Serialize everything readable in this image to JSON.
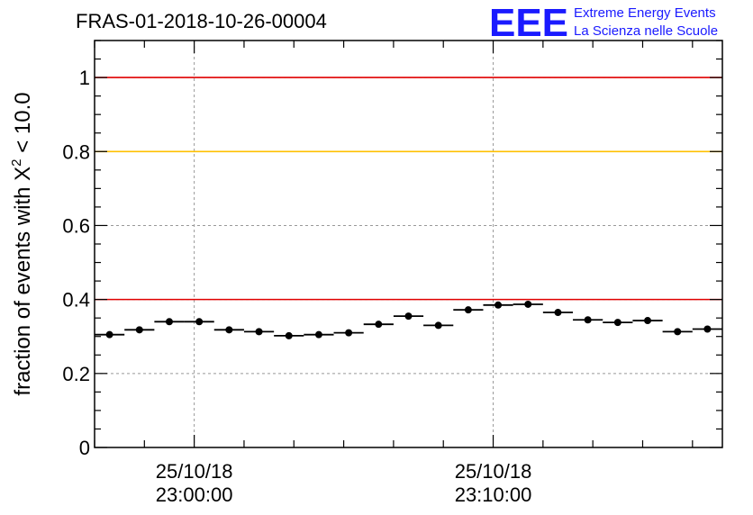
{
  "header": {
    "title": "FRAS-01-2018-10-26-00004",
    "logo_text": "EEE",
    "logo_line1": "Extreme Energy Events",
    "logo_line2": "La Scienza nelle Scuole"
  },
  "colors": {
    "logo": "#1a1aff",
    "ref_red": "#e00000",
    "ref_yellow": "#ffc000",
    "points": "#000000",
    "grid": "#999999"
  },
  "chart_data": {
    "type": "scatter",
    "title": "FRAS-01-2018-10-26-00004",
    "ylabel_main": "fraction of events with X",
    "ylabel_sup": "2",
    "ylabel_tail": " < 10.0",
    "xlabel": "",
    "ylim": [
      0,
      1.1
    ],
    "x_unit": "minutes after 25/10/18 22:56:40",
    "xlim": [
      0,
      21
    ],
    "x_ticks": [
      {
        "value": 3.333,
        "line1": "25/10/18",
        "line2": "23:00:00"
      },
      {
        "value": 13.333,
        "line1": "25/10/18",
        "line2": "23:10:00"
      }
    ],
    "y_ticks": [
      {
        "value": 0,
        "label": "0"
      },
      {
        "value": 0.2,
        "label": "0.2"
      },
      {
        "value": 0.4,
        "label": "0.4"
      },
      {
        "value": 0.6,
        "label": "0.6"
      },
      {
        "value": 0.8,
        "label": "0.8"
      },
      {
        "value": 1.0,
        "label": "1"
      }
    ],
    "reference_lines": [
      {
        "y": 1.0,
        "color": "#e00000"
      },
      {
        "y": 0.8,
        "color": "#ffc000"
      },
      {
        "y": 0.4,
        "color": "#e00000"
      }
    ],
    "grid": true,
    "bin_width": 1,
    "x": [
      0.5,
      1.5,
      2.5,
      3.5,
      4.5,
      5.5,
      6.5,
      7.5,
      8.5,
      9.5,
      10.5,
      11.5,
      12.5,
      13.5,
      14.5,
      15.5,
      16.5,
      17.5,
      18.5,
      19.5,
      20.5
    ],
    "values": [
      0.305,
      0.318,
      0.34,
      0.34,
      0.318,
      0.313,
      0.302,
      0.305,
      0.31,
      0.333,
      0.355,
      0.33,
      0.372,
      0.385,
      0.387,
      0.365,
      0.345,
      0.338,
      0.343,
      0.313,
      0.32
    ]
  }
}
